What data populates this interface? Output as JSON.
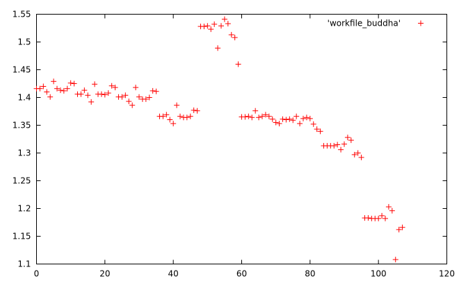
{
  "chart_data": {
    "type": "scatter",
    "title": "",
    "xlabel": "",
    "ylabel": "",
    "xlim": [
      0,
      120
    ],
    "ylim": [
      1.1,
      1.55
    ],
    "grid": false,
    "legend_position": "top-right",
    "xticks": [
      "0",
      "20",
      "40",
      "60",
      "80",
      "100",
      "120"
    ],
    "yticks": [
      "1.1",
      "1.15",
      "1.2",
      "1.25",
      "1.3",
      "1.35",
      "1.4",
      "1.45",
      "1.5",
      "1.55"
    ],
    "marker": "+",
    "color": "#ff0000",
    "series": [
      {
        "name": "'workfile_buddha'",
        "points": [
          [
            0,
            1.416
          ],
          [
            1,
            1.416
          ],
          [
            2,
            1.42
          ],
          [
            3,
            1.41
          ],
          [
            4,
            1.401
          ],
          [
            5,
            1.429
          ],
          [
            6,
            1.416
          ],
          [
            7,
            1.413
          ],
          [
            8,
            1.412
          ],
          [
            9,
            1.416
          ],
          [
            10,
            1.426
          ],
          [
            11,
            1.425
          ],
          [
            12,
            1.406
          ],
          [
            13,
            1.406
          ],
          [
            14,
            1.413
          ],
          [
            15,
            1.404
          ],
          [
            16,
            1.392
          ],
          [
            17,
            1.424
          ],
          [
            18,
            1.406
          ],
          [
            19,
            1.406
          ],
          [
            20,
            1.405
          ],
          [
            21,
            1.408
          ],
          [
            22,
            1.421
          ],
          [
            23,
            1.418
          ],
          [
            24,
            1.401
          ],
          [
            25,
            1.401
          ],
          [
            26,
            1.404
          ],
          [
            27,
            1.393
          ],
          [
            28,
            1.386
          ],
          [
            29,
            1.418
          ],
          [
            30,
            1.401
          ],
          [
            31,
            1.397
          ],
          [
            32,
            1.397
          ],
          [
            33,
            1.4
          ],
          [
            34,
            1.412
          ],
          [
            35,
            1.411
          ],
          [
            36,
            1.366
          ],
          [
            37,
            1.366
          ],
          [
            38,
            1.369
          ],
          [
            39,
            1.36
          ],
          [
            40,
            1.353
          ],
          [
            41,
            1.386
          ],
          [
            42,
            1.366
          ],
          [
            43,
            1.364
          ],
          [
            44,
            1.364
          ],
          [
            45,
            1.366
          ],
          [
            46,
            1.377
          ],
          [
            47,
            1.376
          ],
          [
            48,
            1.528
          ],
          [
            49,
            1.528
          ],
          [
            50,
            1.529
          ],
          [
            51,
            1.523
          ],
          [
            52,
            1.532
          ],
          [
            53,
            1.489
          ],
          [
            54,
            1.529
          ],
          [
            55,
            1.541
          ],
          [
            56,
            1.533
          ],
          [
            57,
            1.513
          ],
          [
            58,
            1.508
          ],
          [
            59,
            1.46
          ],
          [
            60,
            1.365
          ],
          [
            61,
            1.365
          ],
          [
            62,
            1.366
          ],
          [
            63,
            1.364
          ],
          [
            64,
            1.376
          ],
          [
            65,
            1.364
          ],
          [
            66,
            1.366
          ],
          [
            67,
            1.369
          ],
          [
            68,
            1.366
          ],
          [
            69,
            1.361
          ],
          [
            70,
            1.355
          ],
          [
            71,
            1.353
          ],
          [
            72,
            1.361
          ],
          [
            73,
            1.36
          ],
          [
            74,
            1.361
          ],
          [
            75,
            1.359
          ],
          [
            76,
            1.366
          ],
          [
            77,
            1.353
          ],
          [
            78,
            1.362
          ],
          [
            79,
            1.364
          ],
          [
            80,
            1.362
          ],
          [
            81,
            1.352
          ],
          [
            82,
            1.343
          ],
          [
            83,
            1.339
          ],
          [
            84,
            1.313
          ],
          [
            85,
            1.313
          ],
          [
            86,
            1.313
          ],
          [
            87,
            1.313
          ],
          [
            88,
            1.315
          ],
          [
            89,
            1.306
          ],
          [
            90,
            1.316
          ],
          [
            91,
            1.328
          ],
          [
            92,
            1.323
          ],
          [
            93,
            1.297
          ],
          [
            94,
            1.3
          ],
          [
            95,
            1.292
          ],
          [
            96,
            1.183
          ],
          [
            97,
            1.183
          ],
          [
            98,
            1.182
          ],
          [
            99,
            1.182
          ],
          [
            100,
            1.182
          ],
          [
            101,
            1.187
          ],
          [
            102,
            1.182
          ],
          [
            103,
            1.203
          ],
          [
            104,
            1.196
          ],
          [
            105,
            1.108
          ],
          [
            106,
            1.162
          ],
          [
            107,
            1.166
          ]
        ]
      }
    ]
  }
}
